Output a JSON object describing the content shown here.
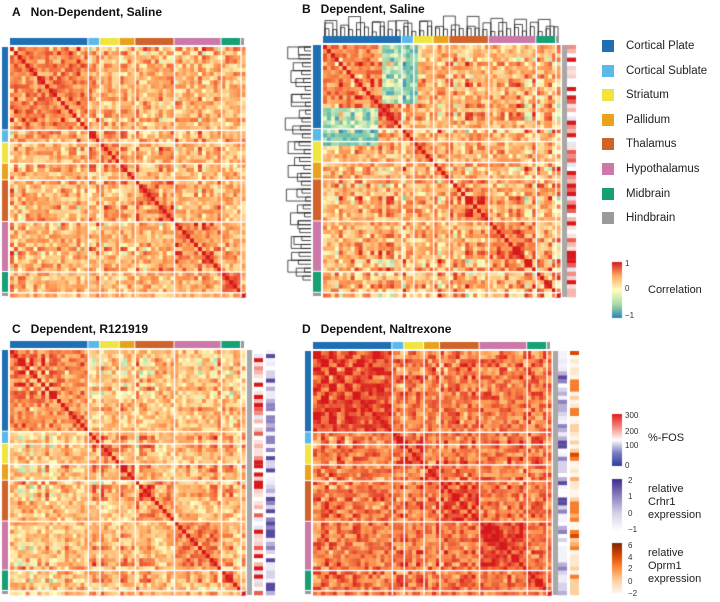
{
  "panels": [
    {
      "letter": "A",
      "title": "Non-Dependent, Saline"
    },
    {
      "letter": "B",
      "title": "Dependent, Saline"
    },
    {
      "letter": "C",
      "title": "Dependent, R121919"
    },
    {
      "letter": "D",
      "title": "Dependent, Naltrexone"
    }
  ],
  "legend": {
    "regions": [
      {
        "label": "Cortical Plate",
        "color": "#1f6fb2"
      },
      {
        "label": "Cortical Sublate",
        "color": "#5bb9ea"
      },
      {
        "label": "Striatum",
        "color": "#f0e440"
      },
      {
        "label": "Pallidum",
        "color": "#e8a21c"
      },
      {
        "label": "Thalamus",
        "color": "#d0632a"
      },
      {
        "label": "Hypothalamus",
        "color": "#cc79a7"
      },
      {
        "label": "Midbrain",
        "color": "#16a073"
      },
      {
        "label": "Hindbrain",
        "color": "#9a9a9a"
      }
    ]
  },
  "colorbars": {
    "correlation": {
      "label": "Correlation",
      "ticks": [
        "1",
        "0",
        "−1"
      ]
    },
    "fos": {
      "label": "%-FOS",
      "ticks": [
        "300",
        "200",
        "100",
        "0"
      ]
    },
    "crhr1": {
      "label": [
        "relative",
        "Crhr1",
        "expression"
      ],
      "ticks": [
        "2",
        "1",
        "0",
        "−1"
      ]
    },
    "oprm1": {
      "label": [
        "relative",
        "Oprm1",
        "expression"
      ],
      "ticks": [
        "6",
        "4",
        "2",
        "0",
        "−2"
      ]
    }
  },
  "chart_data": {
    "type": "heatmap",
    "description_axis": "brain regions grouped by area",
    "groups": [
      "Cortical Plate",
      "Cortical Sublate",
      "Striatum",
      "Pallidum",
      "Thalamus",
      "Hypothalamus",
      "Midbrain",
      "Hindbrain"
    ],
    "group_sizes": [
      20,
      3,
      5,
      4,
      10,
      12,
      5,
      1
    ],
    "value_range": [
      -1,
      1
    ],
    "panels": [
      "Non-Dependent, Saline",
      "Dependent, Saline",
      "Dependent, R121919",
      "Dependent, Naltrexone"
    ]
  }
}
